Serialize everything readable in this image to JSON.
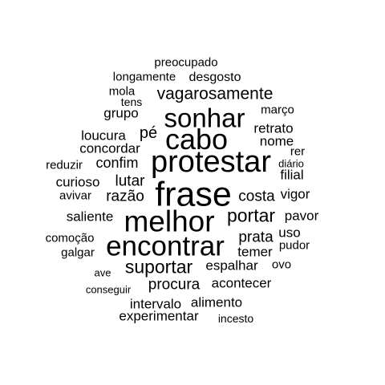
{
  "words": [
    "preocupado",
    "longamente",
    "desgosto",
    "mola",
    "vagarosamente",
    "tens",
    "grupo",
    "março",
    "sonhar",
    "pé",
    "retrato",
    "loucura",
    "cabo",
    "nome",
    "concordar",
    "rer",
    "protestar",
    "reduzir",
    "confim",
    "diário",
    "filial",
    "curioso",
    "lutar",
    "avivar",
    "razão",
    "frase",
    "costa",
    "vigor",
    "saliente",
    "melhor",
    "portar",
    "pavor",
    "uso",
    "comoção",
    "prata",
    "encontrar",
    "pudor",
    "galgar",
    "temer",
    "suportar",
    "espalhar",
    "ovo",
    "ave",
    "conseguir",
    "procura",
    "acontecer",
    "alimento",
    "intervalo",
    "experimentar",
    "incesto"
  ]
}
